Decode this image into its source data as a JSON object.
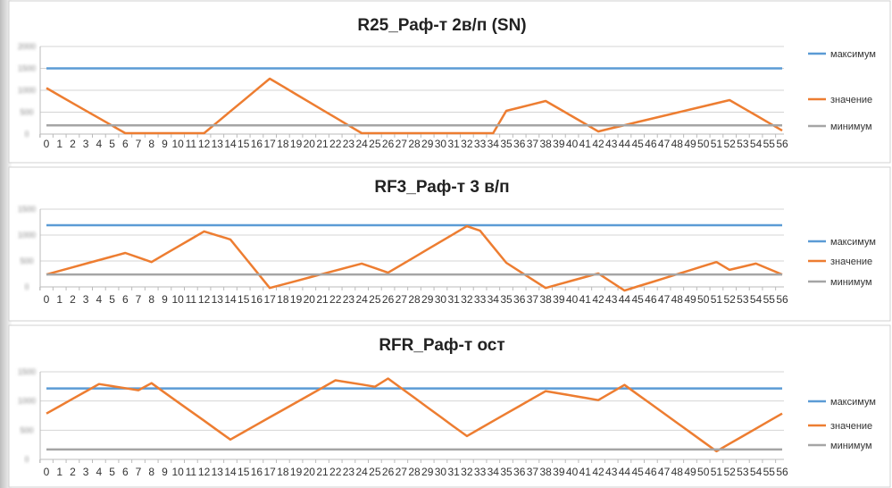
{
  "chart_data": [
    {
      "type": "line",
      "title": "R25_Раф-т 2в/п (SN)",
      "xlabel": "",
      "ylabel": "",
      "ylim": [
        0,
        2000
      ],
      "yticks": [
        0,
        500,
        1000,
        1500,
        2000
      ],
      "grid": true,
      "legend_position": "right",
      "categories": [
        0,
        1,
        2,
        3,
        4,
        5,
        6,
        7,
        8,
        9,
        10,
        11,
        12,
        13,
        14,
        15,
        16,
        17,
        18,
        19,
        20,
        21,
        22,
        23,
        24,
        25,
        26,
        27,
        28,
        29,
        30,
        31,
        32,
        33,
        34,
        35,
        36,
        37,
        38,
        39,
        40,
        41,
        42,
        43,
        44,
        45,
        46,
        47,
        48,
        49,
        50,
        51,
        52,
        53,
        54,
        55,
        56
      ],
      "series": [
        {
          "name": "максимум",
          "color": "#5b9bd5",
          "values": "const:1500"
        },
        {
          "name": "значение",
          "color": "#ed7d31",
          "values": [
            1050,
            878,
            707,
            535,
            363,
            192,
            20,
            20,
            20,
            20,
            20,
            20,
            20,
            269,
            518,
            767,
            1016,
            1265,
            1087,
            909,
            731,
            553,
            375,
            198,
            20,
            20,
            20,
            20,
            20,
            20,
            20,
            20,
            20,
            20,
            20,
            530,
            605,
            680,
            755,
            581,
            408,
            234,
            60,
            132,
            203,
            275,
            346,
            418,
            489,
            561,
            632,
            704,
            775,
            601,
            428,
            254,
            80
          ]
        },
        {
          "name": "минимум",
          "color": "#a5a5a5",
          "values": "const:200"
        }
      ]
    },
    {
      "type": "line",
      "title": "RF3_Раф-т 3 в/п",
      "xlabel": "",
      "ylabel": "",
      "ylim": [
        0,
        1500
      ],
      "yticks": [
        0,
        500,
        1000,
        1500
      ],
      "grid": true,
      "legend_position": "right",
      "categories": [
        0,
        1,
        2,
        3,
        4,
        5,
        6,
        7,
        8,
        9,
        10,
        11,
        12,
        13,
        14,
        15,
        16,
        17,
        18,
        19,
        20,
        21,
        22,
        23,
        24,
        25,
        26,
        27,
        28,
        29,
        30,
        31,
        32,
        33,
        34,
        35,
        36,
        37,
        38,
        39,
        40,
        41,
        42,
        43,
        44,
        45,
        46,
        47,
        48,
        49,
        50,
        51,
        52,
        53,
        54,
        55,
        56
      ],
      "series": [
        {
          "name": "максимум",
          "color": "#5b9bd5",
          "values": "const:1190"
        },
        {
          "name": "значение",
          "color": "#ed7d31",
          "values": [
            240,
            309,
            378,
            448,
            517,
            586,
            655,
            568,
            480,
            628,
            775,
            923,
            1070,
            993,
            915,
            603,
            292,
            -20,
            47,
            114,
            181,
            249,
            316,
            383,
            450,
            363,
            275,
            424,
            573,
            723,
            872,
            1021,
            1170,
            1085,
            775,
            465,
            303,
            142,
            -20,
            50,
            120,
            190,
            260,
            95,
            -70,
            9,
            87,
            166,
            244,
            323,
            401,
            480,
            330,
            390,
            450,
            345,
            240
          ]
        },
        {
          "name": "минимум",
          "color": "#a5a5a5",
          "values": "const:240"
        }
      ]
    },
    {
      "type": "line",
      "title": "RFR_Раф-т ост",
      "xlabel": "",
      "ylabel": "",
      "ylim": [
        0,
        1500
      ],
      "yticks": [
        0,
        500,
        1000,
        1500
      ],
      "grid": true,
      "legend_position": "right",
      "categories": [
        0,
        1,
        2,
        3,
        4,
        5,
        6,
        7,
        8,
        9,
        10,
        11,
        12,
        13,
        14,
        15,
        16,
        17,
        18,
        19,
        20,
        21,
        22,
        23,
        24,
        25,
        26,
        27,
        28,
        29,
        30,
        31,
        32,
        33,
        34,
        35,
        36,
        37,
        38,
        39,
        40,
        41,
        42,
        43,
        44,
        45,
        46,
        47,
        48,
        49,
        50,
        51,
        52,
        53,
        54,
        55,
        56
      ],
      "series": [
        {
          "name": "максимум",
          "color": "#5b9bd5",
          "values": "const:1215"
        },
        {
          "name": "значение",
          "color": "#ed7d31",
          "values": [
            785,
            911,
            1038,
            1164,
            1290,
            1255,
            1220,
            1185,
            1305,
            1144,
            983,
            822,
            662,
            501,
            340,
            467,
            594,
            721,
            848,
            974,
            1101,
            1228,
            1355,
            1318,
            1282,
            1245,
            1385,
            1221,
            1057,
            893,
            728,
            564,
            400,
            528,
            657,
            785,
            913,
            1042,
            1170,
            1131,
            1093,
            1054,
            1015,
            1145,
            1275,
            1113,
            951,
            789,
            626,
            464,
            302,
            140,
            269,
            398,
            527,
            656,
            785
          ]
        },
        {
          "name": "минимум",
          "color": "#a5a5a5",
          "values": "const:170"
        }
      ]
    }
  ]
}
